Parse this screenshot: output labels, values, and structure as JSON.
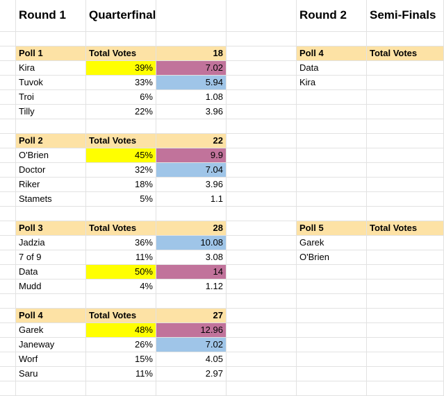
{
  "colors": {
    "header_fill": "#fde2a5",
    "winner_fill": "#ffff00",
    "top_fill": "#c1739b",
    "second_fill": "#9fc5e8",
    "grid_line": "#e2e2e2"
  },
  "header": {
    "round1": "Round 1",
    "quarterfinals": "Quarterfinals",
    "round2": "Round 2",
    "semifinals": "Semi-Finals"
  },
  "quarterfinal_polls": [
    {
      "title": "Poll 1",
      "total_label": "Total Votes",
      "total": "18",
      "rows": [
        {
          "name": "Kira",
          "pct": "39%",
          "votes": "7.02",
          "pct_fill": "winner",
          "votes_fill": "top"
        },
        {
          "name": "Tuvok",
          "pct": "33%",
          "votes": "5.94",
          "pct_fill": "",
          "votes_fill": "second"
        },
        {
          "name": "Troi",
          "pct": "6%",
          "votes": "1.08",
          "pct_fill": "",
          "votes_fill": ""
        },
        {
          "name": "Tilly",
          "pct": "22%",
          "votes": "3.96",
          "pct_fill": "",
          "votes_fill": ""
        }
      ]
    },
    {
      "title": "Poll 2",
      "total_label": "Total Votes",
      "total": "22",
      "rows": [
        {
          "name": "O'Brien",
          "pct": "45%",
          "votes": "9.9",
          "pct_fill": "winner",
          "votes_fill": "top"
        },
        {
          "name": "Doctor",
          "pct": "32%",
          "votes": "7.04",
          "pct_fill": "",
          "votes_fill": "second"
        },
        {
          "name": "Riker",
          "pct": "18%",
          "votes": "3.96",
          "pct_fill": "",
          "votes_fill": ""
        },
        {
          "name": "Stamets",
          "pct": "5%",
          "votes": "1.1",
          "pct_fill": "",
          "votes_fill": ""
        }
      ]
    },
    {
      "title": "Poll 3",
      "total_label": "Total Votes",
      "total": "28",
      "rows": [
        {
          "name": "Jadzia",
          "pct": "36%",
          "votes": "10.08",
          "pct_fill": "",
          "votes_fill": "second"
        },
        {
          "name": "7 of 9",
          "pct": "11%",
          "votes": "3.08",
          "pct_fill": "",
          "votes_fill": ""
        },
        {
          "name": "Data",
          "pct": "50%",
          "votes": "14",
          "pct_fill": "winner",
          "votes_fill": "top"
        },
        {
          "name": "Mudd",
          "pct": "4%",
          "votes": "1.12",
          "pct_fill": "",
          "votes_fill": ""
        }
      ]
    },
    {
      "title": "Poll 4",
      "total_label": "Total Votes",
      "total": "27",
      "rows": [
        {
          "name": "Garek",
          "pct": "48%",
          "votes": "12.96",
          "pct_fill": "winner",
          "votes_fill": "top"
        },
        {
          "name": "Janeway",
          "pct": "26%",
          "votes": "7.02",
          "pct_fill": "",
          "votes_fill": "second"
        },
        {
          "name": "Worf",
          "pct": "15%",
          "votes": "4.05",
          "pct_fill": "",
          "votes_fill": ""
        },
        {
          "name": "Saru",
          "pct": "11%",
          "votes": "2.97",
          "pct_fill": "",
          "votes_fill": ""
        }
      ]
    }
  ],
  "semifinal_polls": [
    {
      "title": "Poll 4",
      "total_label": "Total Votes",
      "rows": [
        "Data",
        "Kira"
      ]
    },
    {
      "title": "Poll 5",
      "total_label": "Total Votes",
      "rows": [
        "Garek",
        "O'Brien"
      ]
    }
  ]
}
